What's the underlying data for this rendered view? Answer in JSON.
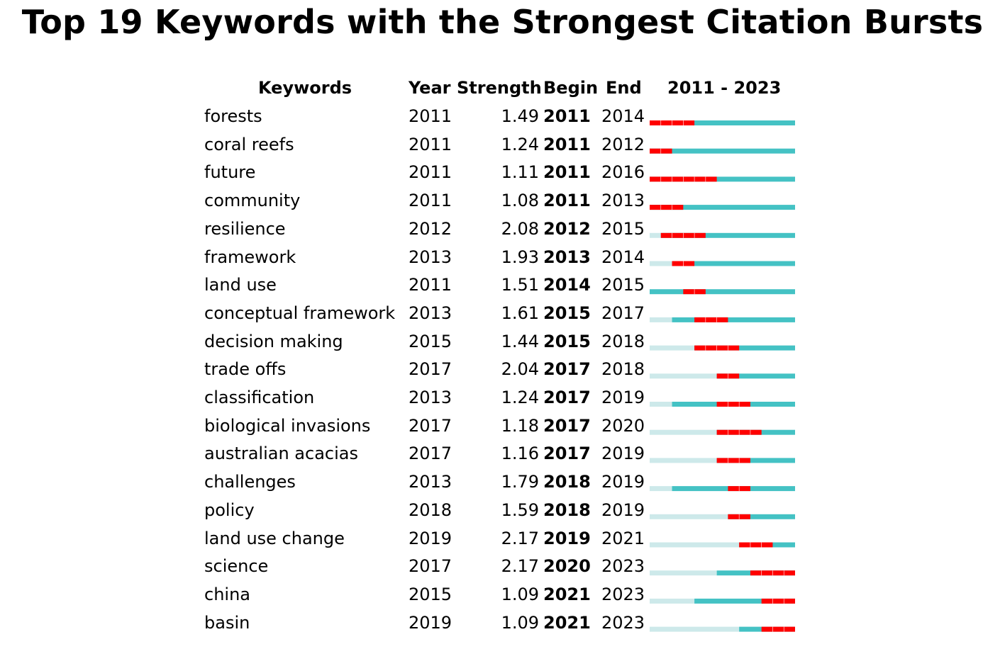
{
  "title": "Top 19 Keywords with the Strongest Citation Bursts",
  "headers": {
    "keywords": "Keywords",
    "year": "Year",
    "strength": "Strength",
    "begin": "Begin",
    "end": "End",
    "range": "2011 - 2023"
  },
  "colors": {
    "burst": "#ff0000",
    "active": "#44c2c4",
    "inactive": "#cde9ea"
  },
  "chart_data": {
    "type": "table",
    "timeline_start": 2011,
    "timeline_end": 2023,
    "rows": [
      {
        "keyword": "forests",
        "year": "2011",
        "strength": "1.49",
        "begin": "2011",
        "end": "2014"
      },
      {
        "keyword": "coral reefs",
        "year": "2011",
        "strength": "1.24",
        "begin": "2011",
        "end": "2012"
      },
      {
        "keyword": "future",
        "year": "2011",
        "strength": "1.11",
        "begin": "2011",
        "end": "2016"
      },
      {
        "keyword": "community",
        "year": "2011",
        "strength": "1.08",
        "begin": "2011",
        "end": "2013"
      },
      {
        "keyword": "resilience",
        "year": "2012",
        "strength": "2.08",
        "begin": "2012",
        "end": "2015"
      },
      {
        "keyword": "framework",
        "year": "2013",
        "strength": "1.93",
        "begin": "2013",
        "end": "2014"
      },
      {
        "keyword": "land use",
        "year": "2011",
        "strength": "1.51",
        "begin": "2014",
        "end": "2015"
      },
      {
        "keyword": "conceptual framework",
        "year": "2013",
        "strength": "1.61",
        "begin": "2015",
        "end": "2017"
      },
      {
        "keyword": "decision making",
        "year": "2015",
        "strength": "1.44",
        "begin": "2015",
        "end": "2018"
      },
      {
        "keyword": "trade offs",
        "year": "2017",
        "strength": "2.04",
        "begin": "2017",
        "end": "2018"
      },
      {
        "keyword": "classification",
        "year": "2013",
        "strength": "1.24",
        "begin": "2017",
        "end": "2019"
      },
      {
        "keyword": "biological invasions",
        "year": "2017",
        "strength": "1.18",
        "begin": "2017",
        "end": "2020"
      },
      {
        "keyword": "australian acacias",
        "year": "2017",
        "strength": "1.16",
        "begin": "2017",
        "end": "2019"
      },
      {
        "keyword": "challenges",
        "year": "2013",
        "strength": "1.79",
        "begin": "2018",
        "end": "2019"
      },
      {
        "keyword": "policy",
        "year": "2018",
        "strength": "1.59",
        "begin": "2018",
        "end": "2019"
      },
      {
        "keyword": "land use change",
        "year": "2019",
        "strength": "2.17",
        "begin": "2019",
        "end": "2021"
      },
      {
        "keyword": "science",
        "year": "2017",
        "strength": "2.17",
        "begin": "2020",
        "end": "2023"
      },
      {
        "keyword": "china",
        "year": "2015",
        "strength": "1.09",
        "begin": "2021",
        "end": "2023"
      },
      {
        "keyword": "basin",
        "year": "2019",
        "strength": "1.09",
        "begin": "2021",
        "end": "2023"
      }
    ]
  }
}
